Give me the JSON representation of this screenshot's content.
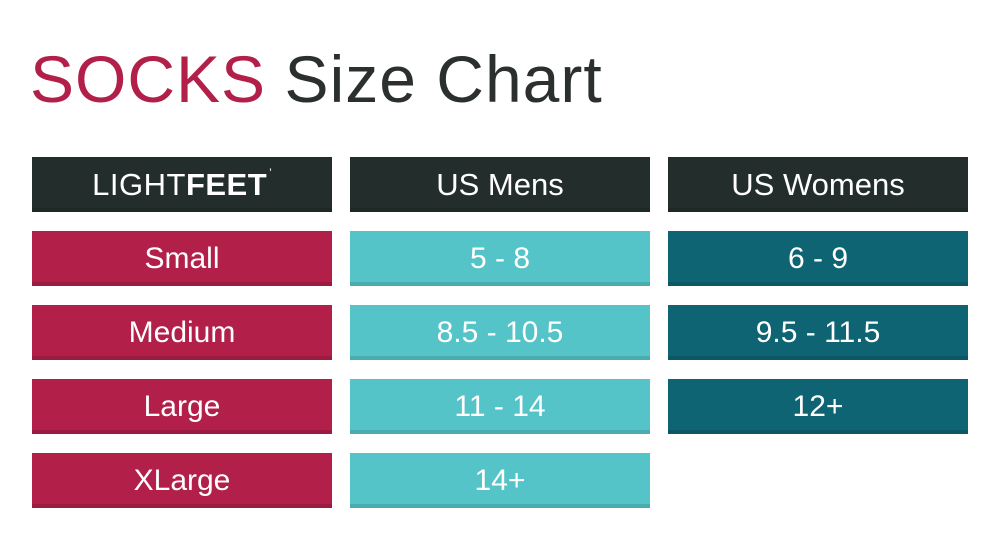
{
  "title": {
    "primary": "SOCKS",
    "secondary": "Size Chart"
  },
  "colors": {
    "accent_crimson": "#b21f49",
    "header_charcoal": "#232e2c",
    "teal_light": "#55c4c9",
    "teal_dark": "#0e6473",
    "title_dark": "#2b2f2e",
    "cell_text": "#ffffff",
    "background": "#ffffff"
  },
  "table": {
    "brand": {
      "light": "LIGHT",
      "feet": "FEET",
      "mark": "’"
    },
    "headers": [
      "US Mens",
      "US Womens"
    ],
    "rows": [
      {
        "size": "Small",
        "mens": "5 - 8",
        "womens": "6 - 9"
      },
      {
        "size": "Medium",
        "mens": "8.5 - 10.5",
        "womens": "9.5 - 11.5"
      },
      {
        "size": "Large",
        "mens": "11 - 14",
        "womens": "12+"
      },
      {
        "size": "XLarge",
        "mens": "14+",
        "womens": ""
      }
    ]
  },
  "chart_data": {
    "type": "table",
    "title": "SOCKS Size Chart",
    "columns": [
      "LIGHTFEET",
      "US Mens",
      "US Womens"
    ],
    "rows": [
      [
        "Small",
        "5 - 8",
        "6 - 9"
      ],
      [
        "Medium",
        "8.5 - 10.5",
        "9.5 - 11.5"
      ],
      [
        "Large",
        "11 - 14",
        "12+"
      ],
      [
        "XLarge",
        "14+",
        ""
      ]
    ],
    "legend_position": "none",
    "grid": false
  }
}
